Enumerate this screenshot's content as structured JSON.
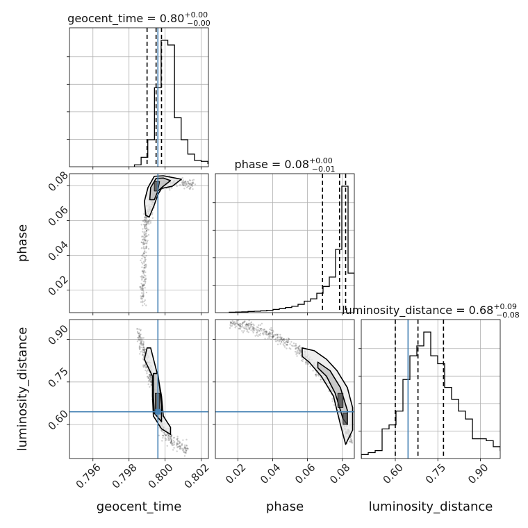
{
  "colors": {
    "truth": "#4682b4",
    "hist": "#000000",
    "grid": "#b0b0b0",
    "scatter": "#555555"
  },
  "chart_data": {
    "type": "corner",
    "parameters": [
      "geocent_time",
      "phase",
      "luminosity_distance"
    ],
    "truth": {
      "geocent_time": 0.7996,
      "phase": null,
      "luminosity_distance": 0.645
    },
    "grid": true,
    "axes": {
      "geocent_time": {
        "lim": [
          0.7947,
          0.8024
        ],
        "ticks": [
          0.796,
          0.798,
          0.8,
          0.802
        ],
        "tick_labels": [
          "0.796",
          "0.798",
          "0.800",
          "0.802"
        ]
      },
      "phase": {
        "lim": [
          0.007,
          0.087
        ],
        "ticks": [
          0.02,
          0.04,
          0.06,
          0.08
        ],
        "tick_labels": [
          "0.02",
          "0.04",
          "0.06",
          "0.08"
        ]
      },
      "luminosity_distance": {
        "lim": [
          0.48,
          0.97
        ],
        "ticks": [
          0.6,
          0.75,
          0.9
        ],
        "tick_labels": [
          "0.60",
          "0.75",
          "0.90"
        ]
      }
    },
    "histograms": [
      {
        "param": "geocent_time",
        "title": "geocent_time = 0.80",
        "sup": "+0.00",
        "sub": "−0.00",
        "quantiles": [
          0.799,
          0.7995,
          0.7998
        ],
        "bin_start": 0.7983,
        "bin_width": 0.00037,
        "counts": [
          0.6,
          3.0,
          8.5,
          25.0,
          40.0,
          38.5,
          15.5,
          8.5,
          4.0,
          2.0,
          1.7,
          1.0,
          0.5,
          0.2
        ]
      },
      {
        "param": "phase",
        "title": "phase = 0.08",
        "sup": "+0.00",
        "sub": "−0.01",
        "quantiles": [
          0.0687,
          0.0785,
          0.082
        ],
        "bin_start": 0.015,
        "bin_width": 0.0036,
        "counts": [
          0.1,
          0.15,
          0.2,
          0.3,
          0.35,
          0.45,
          0.6,
          0.8,
          1.0,
          1.3,
          1.6,
          2.1,
          2.9,
          3.5,
          4.9,
          6.6,
          9.0,
          16.0,
          32.0,
          10.0
        ]
      },
      {
        "param": "luminosity_distance",
        "title": "luminosity_distance = 0.68",
        "sup": "+0.09",
        "sub": "−0.08",
        "quantiles": [
          0.6,
          0.68,
          0.77
        ],
        "bin_start": 0.48,
        "bin_width": 0.0245,
        "counts": [
          1,
          1.5,
          2,
          7.5,
          8.5,
          12,
          20,
          26,
          28.5,
          32,
          26,
          24,
          18,
          15,
          12,
          10,
          5,
          5,
          4.5,
          3,
          2,
          1.5,
          0.8,
          0.4
        ]
      }
    ],
    "pairs": [
      {
        "x": "geocent_time",
        "y": "phase",
        "ridge": [
          [
            0.79875,
            0.012
          ],
          [
            0.7988,
            0.03
          ],
          [
            0.7989,
            0.05
          ],
          [
            0.799,
            0.062
          ],
          [
            0.7993,
            0.072
          ],
          [
            0.7996,
            0.08
          ],
          [
            0.8005,
            0.082
          ],
          [
            0.8015,
            0.081
          ]
        ],
        "contours": [
          [
            [
              0.79893,
              0.063
            ],
            [
              0.79885,
              0.071
            ],
            [
              0.79905,
              0.079
            ],
            [
              0.7994,
              0.0855
            ],
            [
              0.7999,
              0.0858
            ],
            [
              0.8009,
              0.0838
            ],
            [
              0.8004,
              0.0798
            ],
            [
              0.7998,
              0.0785
            ],
            [
              0.7996,
              0.075
            ],
            [
              0.7994,
              0.069
            ],
            [
              0.79912,
              0.062
            ]
          ],
          [
            [
              0.79915,
              0.072
            ],
            [
              0.7992,
              0.079
            ],
            [
              0.7995,
              0.0843
            ],
            [
              0.7999,
              0.0845
            ],
            [
              0.8003,
              0.083
            ],
            [
              0.7999,
              0.0798
            ],
            [
              0.7996,
              0.077
            ],
            [
              0.7994,
              0.072
            ]
          ],
          [
            [
              0.7994,
              0.077
            ],
            [
              0.7994,
              0.0825
            ],
            [
              0.7997,
              0.0825
            ],
            [
              0.7996,
              0.077
            ]
          ]
        ]
      },
      {
        "x": "geocent_time",
        "y": "luminosity_distance",
        "ridge": [
          [
            0.7985,
            0.93
          ],
          [
            0.7988,
            0.86
          ],
          [
            0.7991,
            0.79
          ],
          [
            0.7994,
            0.72
          ],
          [
            0.7996,
            0.65
          ],
          [
            0.7999,
            0.58
          ],
          [
            0.8004,
            0.54
          ],
          [
            0.8012,
            0.51
          ]
        ],
        "contours": [
          [
            [
              0.799,
              0.87
            ],
            [
              0.79885,
              0.83
            ],
            [
              0.7993,
              0.77
            ],
            [
              0.7993,
              0.7
            ],
            [
              0.79935,
              0.63
            ],
            [
              0.7998,
              0.585
            ],
            [
              0.8003,
              0.565
            ],
            [
              0.8003,
              0.59
            ],
            [
              0.7999,
              0.63
            ],
            [
              0.7998,
              0.7
            ],
            [
              0.7996,
              0.77
            ],
            [
              0.7994,
              0.82
            ],
            [
              0.7992,
              0.87
            ]
          ],
          [
            [
              0.79935,
              0.78
            ],
            [
              0.79935,
              0.7
            ],
            [
              0.7994,
              0.64
            ],
            [
              0.7998,
              0.61
            ],
            [
              0.7998,
              0.67
            ],
            [
              0.7997,
              0.73
            ],
            [
              0.7996,
              0.78
            ]
          ],
          [
            [
              0.79945,
              0.71
            ],
            [
              0.79945,
              0.64
            ],
            [
              0.7997,
              0.64
            ],
            [
              0.7997,
              0.71
            ]
          ]
        ]
      },
      {
        "x": "phase",
        "y": "luminosity_distance",
        "ridge": [
          [
            0.016,
            0.96
          ],
          [
            0.025,
            0.945
          ],
          [
            0.035,
            0.925
          ],
          [
            0.045,
            0.9
          ],
          [
            0.055,
            0.86
          ],
          [
            0.065,
            0.8
          ],
          [
            0.072,
            0.75
          ],
          [
            0.078,
            0.68
          ],
          [
            0.082,
            0.58
          ],
          [
            0.085,
            0.55
          ]
        ],
        "contours": [
          [
            [
              0.057,
              0.87
            ],
            [
              0.064,
              0.86
            ],
            [
              0.071,
              0.83
            ],
            [
              0.077,
              0.79
            ],
            [
              0.083,
              0.73
            ],
            [
              0.086,
              0.66
            ],
            [
              0.086,
              0.58
            ],
            [
              0.082,
              0.53
            ],
            [
              0.079,
              0.6
            ],
            [
              0.075,
              0.7
            ],
            [
              0.068,
              0.77
            ],
            [
              0.061,
              0.82
            ],
            [
              0.057,
              0.84
            ]
          ],
          [
            [
              0.066,
              0.82
            ],
            [
              0.073,
              0.79
            ],
            [
              0.079,
              0.73
            ],
            [
              0.083,
              0.65
            ],
            [
              0.083,
              0.6
            ],
            [
              0.0805,
              0.62
            ],
            [
              0.076,
              0.71
            ],
            [
              0.071,
              0.77
            ],
            [
              0.066,
              0.8
            ]
          ],
          [
            [
              0.0775,
              0.71
            ],
            [
              0.0805,
              0.71
            ],
            [
              0.0805,
              0.66
            ],
            [
              0.0775,
              0.66
            ]
          ],
          [
            [
              0.0805,
              0.64
            ],
            [
              0.083,
              0.64
            ],
            [
              0.083,
              0.6
            ],
            [
              0.0805,
              0.6
            ]
          ]
        ]
      }
    ]
  }
}
